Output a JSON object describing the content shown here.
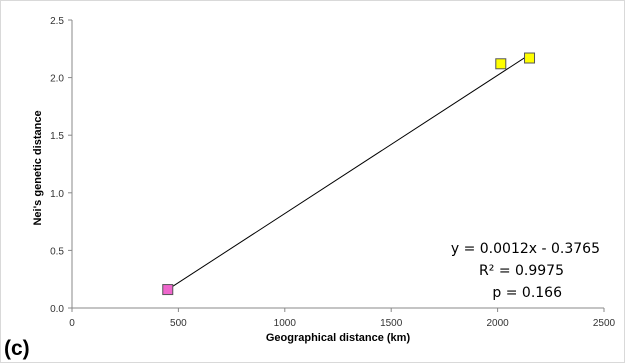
{
  "panel_label": "(c)",
  "chart_data": {
    "type": "scatter",
    "xlabel": "Geographical distance (km)",
    "ylabel": "Nei's genetic distance",
    "xlim": [
      0,
      2500
    ],
    "ylim": [
      0,
      2.5
    ],
    "x_ticks": [
      "0",
      "500",
      "1000",
      "1500",
      "2000",
      "2500"
    ],
    "y_ticks": [
      "0.0",
      "0.5",
      "1.0",
      "1.5",
      "2.0",
      "2.5"
    ],
    "grid": false,
    "legend": "none",
    "points": [
      {
        "x": 450,
        "y": 0.16,
        "color": "#ee66cc"
      },
      {
        "x": 2015,
        "y": 2.12,
        "color": "#ffff00"
      },
      {
        "x": 2150,
        "y": 2.17,
        "color": "#ffff00"
      }
    ],
    "trendline": {
      "x": [
        450,
        2150
      ],
      "y": [
        0.16,
        2.2
      ]
    },
    "annotations": {
      "equation": "y = 0.0012x - 0.3765",
      "r_squared": "R² = 0.9975",
      "p_value": "p = 0.166"
    }
  }
}
